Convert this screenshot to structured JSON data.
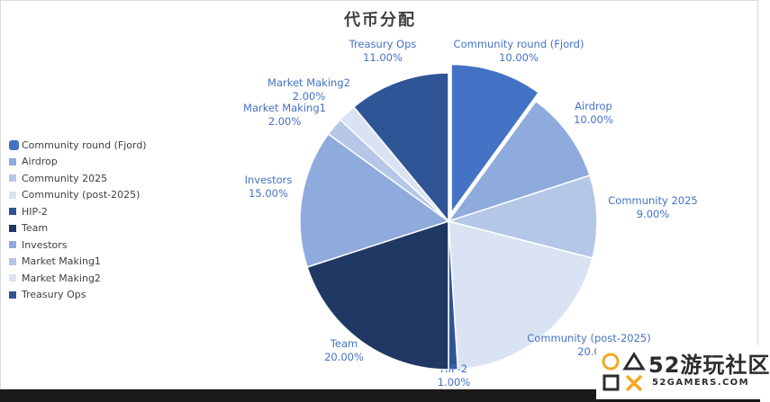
{
  "chart_data": {
    "type": "pie",
    "title": "代币分配",
    "categories": [
      "Community round (Fjord)",
      "Airdrop",
      "Community 2025",
      "Community (post-2025)",
      "HIP-2",
      "Team",
      "Investors",
      "Market Making1",
      "Market Making2",
      "Treasury Ops"
    ],
    "values": [
      10,
      10,
      9,
      20,
      1,
      20,
      15,
      2,
      2,
      11
    ],
    "value_labels": [
      "10.00%",
      "10.00%",
      "9.00%",
      "20.0",
      "1.00%",
      "20.00%",
      "15.00%",
      "2.00%",
      "2.00%",
      "11.00%"
    ],
    "colors": [
      "#4472c4",
      "#8faadc",
      "#b4c7e7",
      "#dae3f3",
      "#2f5597",
      "#1f3864",
      "#8faadc",
      "#b4c7e7",
      "#dae3f3",
      "#2f5597"
    ],
    "exploded_slice": "Community round (Fjord)",
    "legend_position": "left"
  },
  "watermark": {
    "brand": "52游玩社区",
    "url": "52GAMERS.COM"
  }
}
